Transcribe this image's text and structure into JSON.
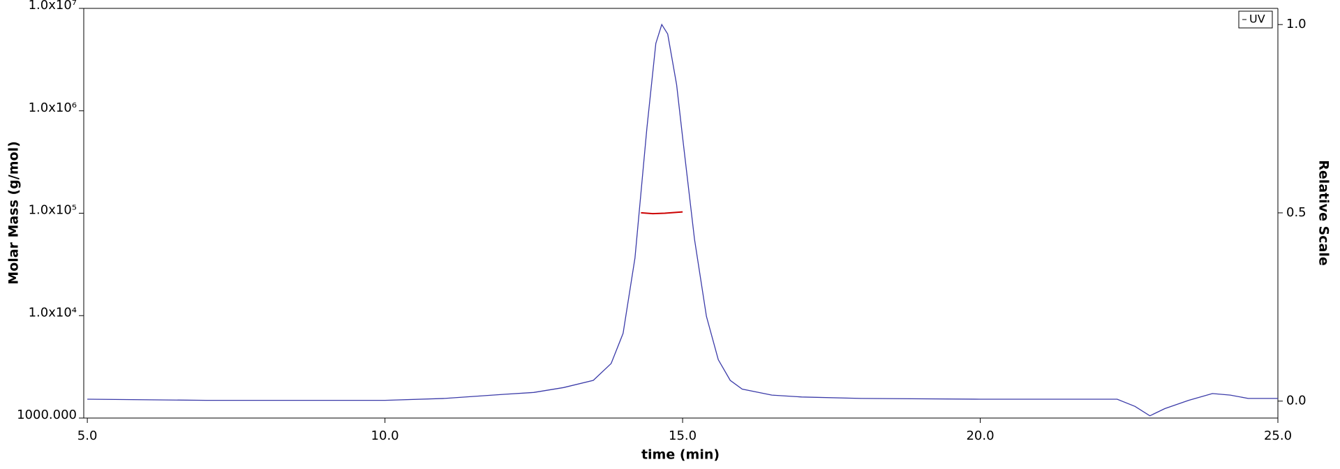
{
  "chart_data": {
    "type": "line",
    "xlabel": "time (min)",
    "ylabel": "Molar Mass (g/mol)",
    "y2label": "Relative Scale",
    "xlim": [
      4.94,
      25.0
    ],
    "xticks": [
      {
        "value": 5,
        "label": "5.0"
      },
      {
        "value": 10,
        "label": "10.0"
      },
      {
        "value": 15,
        "label": "15.0"
      },
      {
        "value": 20,
        "label": "20.0"
      },
      {
        "value": 25,
        "label": "25.0"
      }
    ],
    "ylim": [
      1000,
      10000000
    ],
    "yscale": "log",
    "yticks": [
      {
        "value": 1000,
        "label": "1000.000"
      },
      {
        "value": 10000,
        "label": "1.0x10⁴"
      },
      {
        "value": 100000,
        "label": "1.0x10⁵"
      },
      {
        "value": 1000000,
        "label": "1.0x10⁶"
      },
      {
        "value": 10000000,
        "label": "1.0x10⁷"
      }
    ],
    "y2lim": [
      -0.045,
      1.043
    ],
    "y2ticks": [
      {
        "value": 0,
        "label": "0.0"
      },
      {
        "value": 0.5,
        "label": "0.5"
      },
      {
        "value": 1,
        "label": "1.0"
      }
    ],
    "legend": "upper right",
    "series": [
      {
        "name": "UV",
        "color": "#3a3aa8",
        "axis": "y2",
        "x": [
          5.0,
          7.0,
          10.0,
          11.0,
          12.0,
          12.5,
          13.0,
          13.5,
          13.8,
          14.0,
          14.2,
          14.4,
          14.55,
          14.65,
          14.75,
          14.9,
          15.0,
          15.2,
          15.4,
          15.6,
          15.8,
          16.0,
          16.5,
          17.0,
          18.0,
          20.0,
          22.3,
          22.6,
          22.85,
          23.1,
          23.5,
          23.9,
          24.2,
          24.5,
          25.0
        ],
        "values": [
          0.005,
          0.002,
          0.002,
          0.007,
          0.018,
          0.023,
          0.036,
          0.055,
          0.1,
          0.18,
          0.38,
          0.725,
          0.95,
          1.0,
          0.975,
          0.84,
          0.7,
          0.43,
          0.225,
          0.11,
          0.055,
          0.032,
          0.016,
          0.011,
          0.007,
          0.005,
          0.005,
          -0.014,
          -0.039,
          -0.02,
          0.002,
          0.02,
          0.016,
          0.007,
          0.007
        ]
      },
      {
        "color": "#cc0000",
        "axis": "y",
        "x": [
          14.3,
          14.5,
          14.7,
          14.9,
          15.0
        ],
        "values": [
          101000,
          99000,
          100000,
          102000,
          103000
        ]
      }
    ]
  }
}
